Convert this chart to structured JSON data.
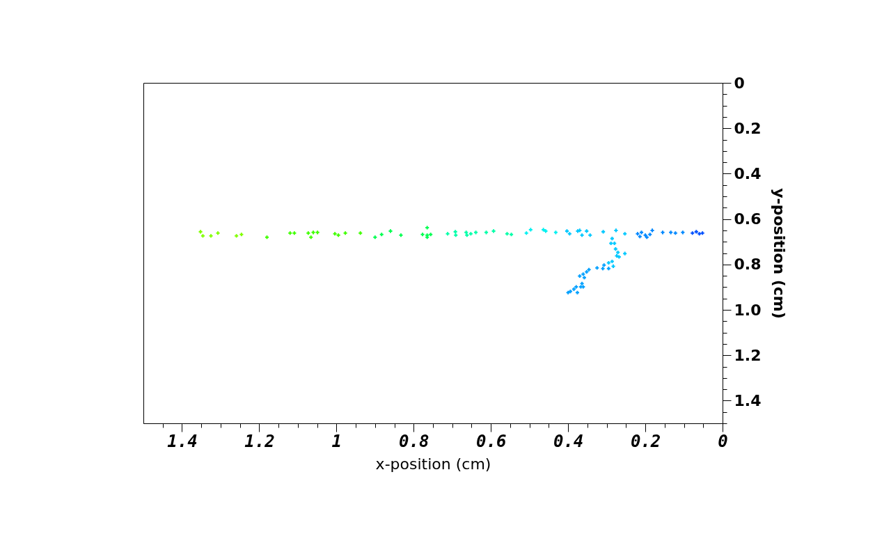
{
  "chart_data": {
    "type": "scatter",
    "xlabel": "x-position (cm)",
    "ylabel": "y-position (cm)",
    "xlim": [
      1.5,
      0
    ],
    "ylim": [
      1.5,
      0
    ],
    "xticks": [
      0,
      0.2,
      0.4,
      0.6,
      0.8,
      1,
      1.2,
      1.4,
      {
        "value": 0.05,
        "label": null
      },
      {
        "value": 0.1,
        "label": null
      },
      {
        "value": 0.15,
        "label": null
      },
      {
        "value": 0.25,
        "label": null
      },
      {
        "value": 0.3,
        "label": null
      },
      {
        "value": 0.35,
        "label": null
      },
      {
        "value": 0.45,
        "label": null
      },
      {
        "value": 0.5,
        "label": null
      },
      {
        "value": 0.55,
        "label": null
      },
      {
        "value": 0.65,
        "label": null
      },
      {
        "value": 0.7,
        "label": null
      },
      {
        "value": 0.75,
        "label": null
      },
      {
        "value": 0.85,
        "label": null
      },
      {
        "value": 0.9,
        "label": null
      },
      {
        "value": 0.95,
        "label": null
      },
      {
        "value": 1.05,
        "label": null
      },
      {
        "value": 1.1,
        "label": null
      },
      {
        "value": 1.15,
        "label": null
      },
      {
        "value": 1.25,
        "label": null
      },
      {
        "value": 1.3,
        "label": null
      },
      {
        "value": 1.35,
        "label": null
      },
      {
        "value": 1.45,
        "label": null
      }
    ],
    "yticks": [
      0,
      0.2,
      0.4,
      0.6,
      0.8,
      {
        "value": 1,
        "label": "1.0"
      },
      1.2,
      1.4,
      {
        "value": 0.05,
        "label": null
      },
      {
        "value": 0.1,
        "label": null
      },
      {
        "value": 0.15,
        "label": null
      },
      {
        "value": 0.25,
        "label": null
      },
      {
        "value": 0.3,
        "label": null
      },
      {
        "value": 0.35,
        "label": null
      },
      {
        "value": 0.45,
        "label": null
      },
      {
        "value": 0.5,
        "label": null
      },
      {
        "value": 0.55,
        "label": null
      },
      {
        "value": 0.65,
        "label": null
      },
      {
        "value": 0.7,
        "label": null
      },
      {
        "value": 0.75,
        "label": null
      },
      {
        "value": 0.85,
        "label": null
      },
      {
        "value": 0.9,
        "label": null
      },
      {
        "value": 0.95,
        "label": null
      },
      {
        "value": 1.05,
        "label": null
      },
      {
        "value": 1.1,
        "label": null
      },
      {
        "value": 1.15,
        "label": null
      },
      {
        "value": 1.25,
        "label": null
      },
      {
        "value": 1.3,
        "label": null
      },
      {
        "value": 1.35,
        "label": null
      },
      {
        "value": 1.45,
        "label": null
      },
      {
        "value": 1.5,
        "label": null
      }
    ],
    "grid": false,
    "marker": "cross",
    "series": [
      {
        "color": "#80ff00",
        "x": [
          1.352,
          1.346,
          1.325,
          1.307,
          1.259,
          1.246
        ],
        "values": [
          0.656,
          0.674,
          0.674,
          0.662,
          0.674,
          0.668
        ]
      },
      {
        "color": "#40ff00",
        "x": [
          1.18,
          1.12,
          1.109,
          1.073,
          1.066,
          1.06,
          1.049,
          1.004,
          0.995,
          0.977,
          0.938
        ],
        "values": [
          0.68,
          0.662,
          0.662,
          0.662,
          0.68,
          0.659,
          0.659,
          0.665,
          0.671,
          0.662,
          0.662
        ]
      },
      {
        "color": "#00ff50",
        "x": [
          0.9,
          0.883,
          0.86,
          0.833,
          0.765,
          0.765,
          0.777,
          0.756,
          0.765
        ],
        "values": [
          0.68,
          0.668,
          0.653,
          0.671,
          0.638,
          0.671,
          0.668,
          0.668,
          0.68
        ]
      },
      {
        "color": "#00ffa8",
        "x": [
          0.712,
          0.692,
          0.691,
          0.664,
          0.662,
          0.652,
          0.639,
          0.612,
          0.593,
          0.558,
          0.547
        ],
        "values": [
          0.665,
          0.656,
          0.671,
          0.659,
          0.671,
          0.665,
          0.659,
          0.659,
          0.653,
          0.665,
          0.668
        ]
      },
      {
        "color": "#00f0f0",
        "x": [
          0.508,
          0.497,
          0.464,
          0.458,
          0.432
        ],
        "values": [
          0.662,
          0.647,
          0.647,
          0.653,
          0.659
        ]
      },
      {
        "color": "#00c8ff",
        "x": [
          0.403,
          0.396,
          0.375,
          0.37,
          0.364,
          0.352,
          0.343,
          0.309,
          0.276,
          0.253,
          0.286,
          0.28,
          0.289,
          0.277,
          0.271,
          0.253,
          0.268,
          0.274,
          0.286,
          0.295,
          0.283
        ],
        "values": [
          0.653,
          0.665,
          0.653,
          0.65,
          0.671,
          0.653,
          0.671,
          0.656,
          0.65,
          0.665,
          0.686,
          0.707,
          0.707,
          0.732,
          0.747,
          0.752,
          0.767,
          0.762,
          0.787,
          0.793,
          0.808
        ]
      },
      {
        "color": "#00a0ff",
        "x": [
          0.295,
          0.307,
          0.31,
          0.325,
          0.346,
          0.352,
          0.361,
          0.37,
          0.358,
          0.364,
          0.367,
          0.379,
          0.385,
          0.394,
          0.4,
          0.376,
          0.361
        ],
        "values": [
          0.818,
          0.803,
          0.818,
          0.815,
          0.823,
          0.833,
          0.843,
          0.851,
          0.858,
          0.884,
          0.899,
          0.899,
          0.909,
          0.919,
          0.924,
          0.924,
          0.899
        ]
      },
      {
        "color": "#0088ff",
        "x": [
          0.22,
          0.21,
          0.2,
          0.214,
          0.196,
          0.182,
          0.188,
          0.155,
          0.134,
          0.122,
          0.103
        ],
        "values": [
          0.665,
          0.659,
          0.671,
          0.677,
          0.68,
          0.65,
          0.668,
          0.659,
          0.659,
          0.662,
          0.659
        ]
      },
      {
        "color": "#0050ff",
        "x": [
          0.078,
          0.068,
          0.06,
          0.052
        ],
        "values": [
          0.662,
          0.656,
          0.665,
          0.662
        ]
      }
    ]
  }
}
